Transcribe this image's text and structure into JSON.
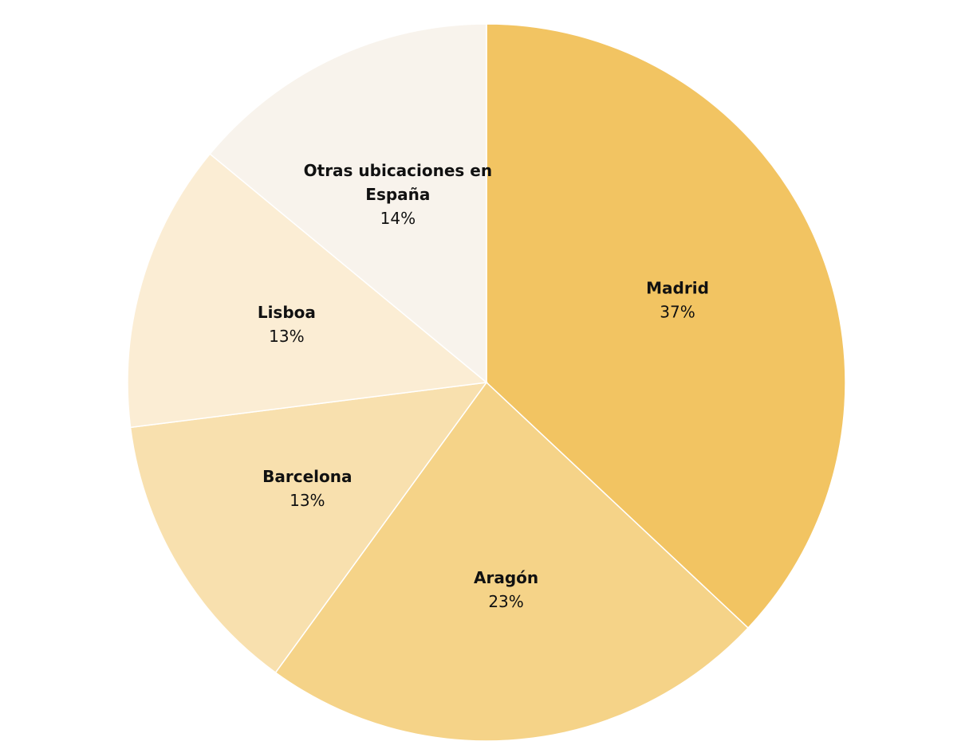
{
  "chart_data": {
    "type": "pie",
    "title": "",
    "start_angle_deg": 0,
    "direction": "clockwise",
    "slices": [
      {
        "name": "Madrid",
        "value": 37,
        "label": "37%",
        "color": "#F2C462"
      },
      {
        "name": "Aragón",
        "value": 23,
        "label": "23%",
        "color": "#F5D388"
      },
      {
        "name": "Barcelona",
        "value": 13,
        "label": "13%",
        "color": "#F8E0AE"
      },
      {
        "name": "Lisboa",
        "value": 13,
        "label": "13%",
        "color": "#FBEDD4"
      },
      {
        "name": "Otras ubicaciones en España",
        "value": 14,
        "label": "14%",
        "color": "#F8F3EC"
      }
    ]
  }
}
